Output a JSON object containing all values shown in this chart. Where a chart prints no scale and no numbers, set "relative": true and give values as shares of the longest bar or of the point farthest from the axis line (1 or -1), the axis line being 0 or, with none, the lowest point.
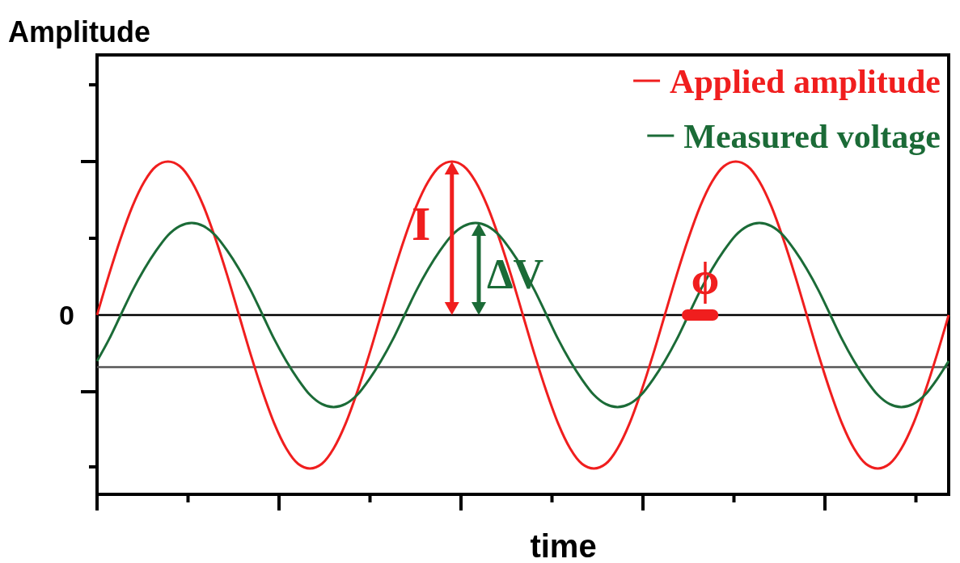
{
  "chart_data": {
    "type": "line",
    "relative": true,
    "ylabel": "Amplitude",
    "xlabel": "time",
    "categories": [
      null,
      null,
      null,
      null,
      null,
      null,
      null,
      null,
      null,
      null,
      null,
      null,
      null,
      null,
      null,
      null,
      null,
      null,
      null,
      null,
      null,
      null,
      null,
      null,
      null,
      null,
      null,
      null,
      null,
      null,
      null,
      null,
      null,
      null,
      null,
      null,
      null,
      null,
      null,
      null,
      null,
      null,
      null,
      null,
      null,
      null,
      null,
      null,
      null,
      null,
      null,
      null,
      null,
      null,
      null,
      null,
      null,
      null,
      null,
      null,
      null,
      null,
      null,
      null,
      null,
      null,
      null,
      null,
      null,
      null,
      null,
      null,
      null
    ],
    "series": [
      {
        "name": "Applied amplitude",
        "color": "#f01e1e",
        "values": [
          0,
          0.26,
          0.5,
          0.71,
          0.87,
          0.97,
          1,
          0.97,
          0.87,
          0.71,
          0.5,
          0.26,
          0,
          -0.26,
          -0.5,
          -0.71,
          -0.87,
          -0.97,
          -1,
          -0.97,
          -0.87,
          -0.71,
          -0.5,
          -0.26,
          0,
          0.26,
          0.5,
          0.71,
          0.87,
          0.97,
          1,
          0.97,
          0.87,
          0.71,
          0.5,
          0.26,
          0,
          -0.26,
          -0.5,
          -0.71,
          -0.87,
          -0.97,
          -1,
          -0.97,
          -0.87,
          -0.71,
          -0.5,
          -0.26,
          0,
          0.26,
          0.5,
          0.71,
          0.87,
          0.97,
          1,
          0.97,
          0.87,
          0.71,
          0.5,
          0.26,
          0,
          -0.26,
          -0.5,
          -0.71,
          -0.87,
          -0.97,
          -1,
          -0.97,
          -0.87,
          -0.71,
          -0.5,
          -0.26,
          0
        ]
      },
      {
        "name": "Measured voltage",
        "color": "#1b6b37",
        "values": [
          -0.3,
          -0.16,
          0,
          0.16,
          0.3,
          0.42,
          0.52,
          0.58,
          0.6,
          0.58,
          0.52,
          0.42,
          0.3,
          0.16,
          0,
          -0.16,
          -0.3,
          -0.42,
          -0.52,
          -0.58,
          -0.6,
          -0.58,
          -0.52,
          -0.42,
          -0.3,
          -0.16,
          0,
          0.16,
          0.3,
          0.42,
          0.52,
          0.58,
          0.6,
          0.58,
          0.52,
          0.42,
          0.3,
          0.16,
          0,
          -0.16,
          -0.3,
          -0.42,
          -0.52,
          -0.58,
          -0.6,
          -0.58,
          -0.52,
          -0.42,
          -0.3,
          -0.16,
          0,
          0.16,
          0.3,
          0.42,
          0.52,
          0.58,
          0.6,
          0.58,
          0.52,
          0.42,
          0.3,
          0.16,
          0,
          -0.16,
          -0.3,
          -0.42,
          -0.52,
          -0.58,
          -0.6,
          -0.58,
          -0.52,
          -0.42,
          -0.3
        ]
      }
    ],
    "ref_lines": [
      {
        "axis": "y",
        "value": 0,
        "label": "0",
        "color": "#000000"
      },
      {
        "axis": "y",
        "value": -0.34,
        "color": "#555555"
      }
    ],
    "annotations": [
      "I",
      "ΔV",
      "ϕ"
    ],
    "legend": "top right",
    "marker": "none",
    "line_style": "solid"
  }
}
